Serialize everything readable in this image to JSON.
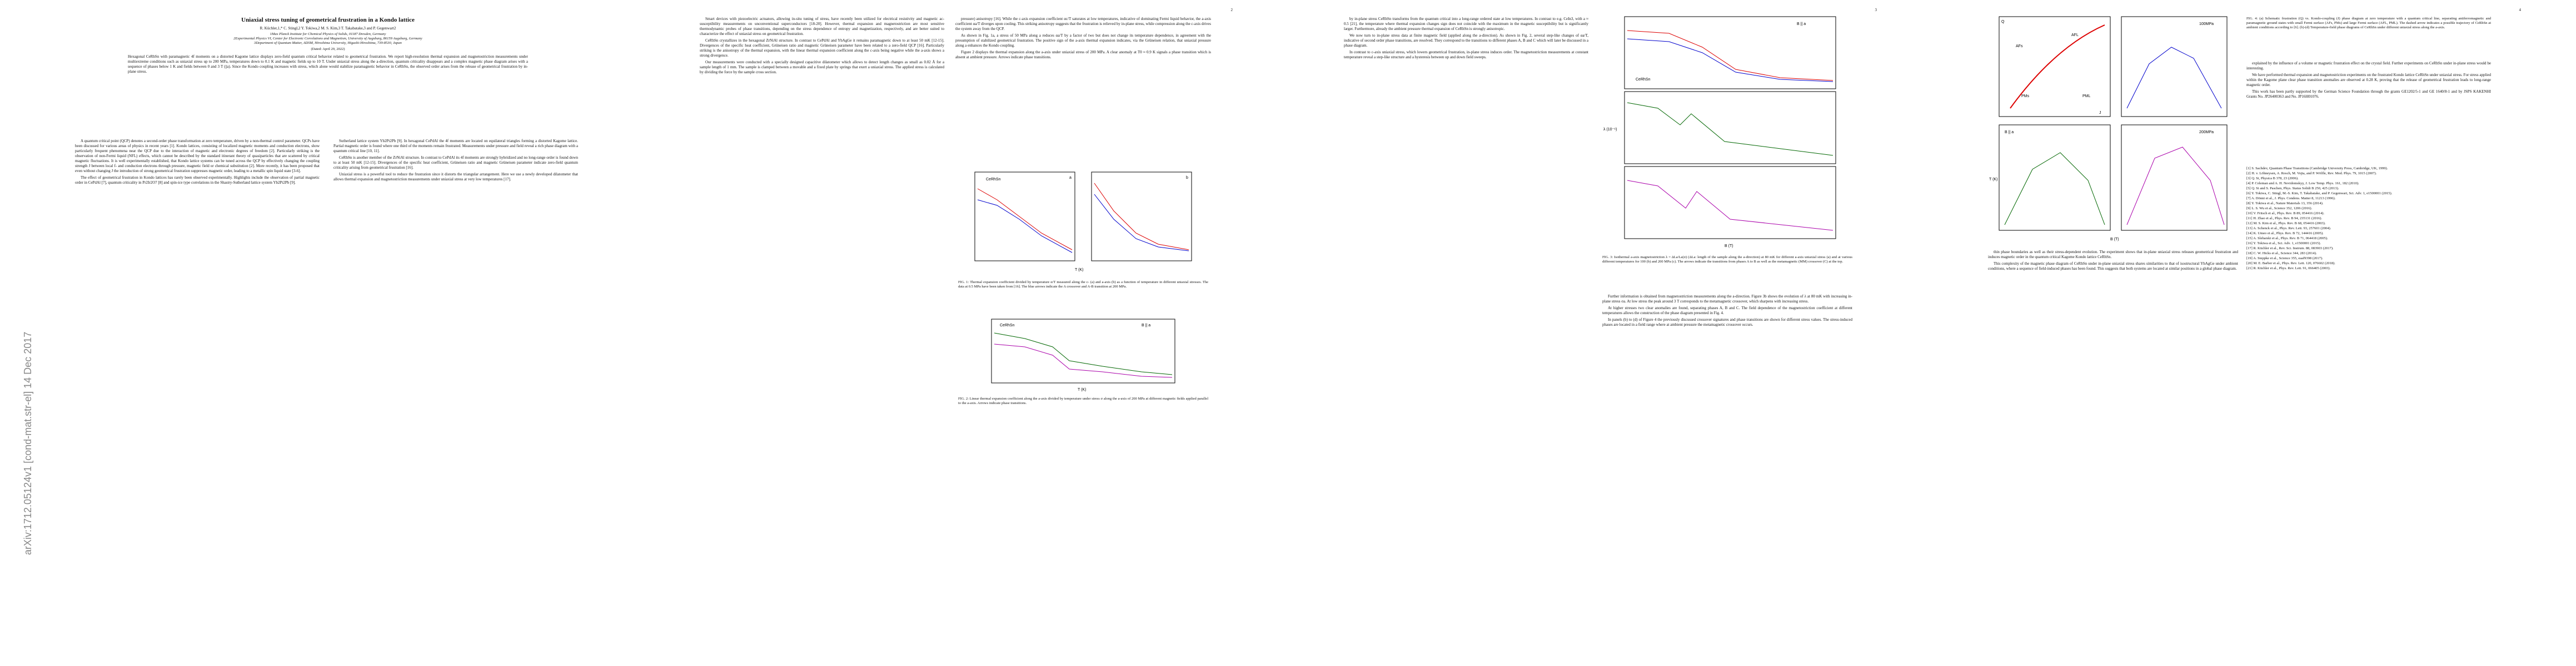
{
  "sidebar": "arXiv:1712.05124v1 [cond-mat.str-el] 14 Dec 2017",
  "page1": {
    "title": "Uniaxial stress tuning of geometrical frustration in a Kondo lattice",
    "authors": "R. Küchler,1,* C. Stingl,2 Y. Tokiwa,2 M. S. Kim,3 T. Takabatake,3 and P. Gegenwart2",
    "affiliations": [
      "1Max Planck Institute for Chemical Physics of Solids, 01187 Dresden, Germany",
      "2Experimental Physics VI, Center for Electronic Correlations and Magnetism, University of Augsburg, 86159 Augsburg, Germany",
      "3Department of Quantum Matter, ADSM, Hiroshima University, Higashi-Hiroshima, 739-8530, Japan"
    ],
    "dated": "(Dated: April 29, 2022)",
    "abstract": "Hexagonal CeRhSn with paramagnetic 4f moments on a distorted Kagome lattice displays zero-field quantum critical behavior related to geometrical frustration. We report high-resolution thermal expansion and magnetostriction measurements under multiextreme conditions such as uniaxial stress up to 200 MPa, temperatures down to 0.1 K and magnetic fields up to 10 T. Under uniaxial stress along the a-direction, quantum criticality disappears and a complex magnetic phase diagram arises with a sequence of phases below 1 K and fields between 0 and 3 T (||a). Since the Kondo coupling increases with stress, which alone would stabilize paramagnetic behavior in CeRhSn, the observed order arises from the release of geometrical frustration by in-plane stress.",
    "left": [
      "A quantum critical point (QCP) denotes a second-order phase transformation at zero temperature, driven by a non-thermal control parameter. QCPs have been discussed for various areas of physics in recent years [1]. Kondo lattices, consisting of localized magnetic moments and conduction electrons, show particularly frequent phenomena near the QCP due to the interaction of magnetic and electronic degrees of freedom [2]. Particularly striking is the observation of non-Fermi liquid (NFL) effects, which cannot be described by the standard itinerant theory of quasiparticles that are scattered by critical magnetic fluctuations. It is well experimentally established, that Kondo lattice systems can be tuned across the QCP by effectively changing the coupling strength J between local f- and conduction electrons through pressure, magnetic field or chemical substitution [2]. More recently, it has been proposed that even without changing J the introduction of strong geometrical frustration suppresses magnetic order, leading to a metallic spin liquid state [3-6].",
      "The effect of geometrical frustration in Kondo lattices has rarely been observed experimentally. Highlights include the observation of partial magnetic order in CePdAl [7], quantum criticality in Pr2Ir2O7 [8] and spin-ice type correlations in the Shastry-Sutherland lattice system Yb2Pt2Pb [9]."
    ],
    "right": [
      "Sutherland lattice system Yb2Pt2Pb [9]. In hexagonal CePdAl the 4f moments are located on equilateral triangles forming a distorted Kagome lattice. Partial magnetic order is found where one third of the moments remain frustrated. Measurements under pressure and field reveal a rich phase diagram with a quantum critical line [10, 11].",
      "CeRhSn is another member of the ZrNiAl structure. In contrast to CePdAl its 4f moments are strongly hybridized and no long-range order is found down to at least 50 mK [12-15]. Divergences of the specific heat coefficient, Grüneisen ratio and magnetic Grüneisen parameter indicate zero-field quantum criticality arising from geometrical frustration [16].",
      "Uniaxial stress is a powerful tool to reduce the frustration since it distorts the triangular arrangement. Here we use a newly developed dilatometer that allows thermal expansion and magnetostriction measurements under uniaxial stress at very low temperatures [17]."
    ]
  },
  "page2": {
    "number": "2",
    "left": [
      "Smart devices with piezoelectric actuators, allowing in-situ tuning of stress, have recently been utilized for electrical resistivity and magnetic ac-susceptibility measurements on unconventional superconductors [18-20]. However, thermal expansion and magnetostriction are most sensitive thermodynamic probes of phase transitions, depending on the stress dependence of entropy and magnetization, respectively, and are better suited to characterize the effect of uniaxial stress on geometrical frustration.",
      "CeRhSn crystallizes in the hexagonal ZrNiAl structure. In contrast to CePdAl and YbAgGe it remains paramagnetic down to at least 50 mK [12-15]. Divergences of the specific heat coefficient, Grüneisen ratio and magnetic Grüneisen parameter have been related to a zero-field QCP [16]. Particularly striking is the anisotropy of the thermal expansion, with the linear thermal expansion coefficient along the c-axis being negative while the a-axis shows a strong divergence.",
      "Our measurements were conducted with a specially designed capacitive dilatometer which allows to detect length changes as small as 0.02 Å for a sample length of 1 mm. The sample is clamped between a movable and a fixed plate by springs that exert a uniaxial stress. The applied stress is calculated by dividing the force by the sample cross section."
    ],
    "right": [
      "pressure) anisotropy [16]. While the c-axis expansion coefficient αc/T saturates at low temperatures, indicative of dominating Fermi liquid behavior, the a-axis coefficient αa/T diverges upon cooling. This striking anisotropy suggests that the frustration is relieved by in-plane stress, while compression along the c-axis drives the system away from the QCP.",
      "As shown in Fig. 1a, a stress of 50 MPa along a reduces αa/T by a factor of two but does not change its temperature dependence, in agreement with the presumption of stabilized geometrical frustration. The positive sign of the a-axis thermal expansion indicates, via the Grüneisen relation, that uniaxial pressure along a enhances the Kondo coupling.",
      "Figure 2 displays the thermal expansion along the a-axis under uniaxial stress of 200 MPa. A clear anomaly at T0 ≈ 0.9 K signals a phase transition which is absent at ambient pressure. Arrows indicate phase transitions."
    ],
    "fig1_caption": "FIG. 1: Thermal expansion coefficient divided by temperature α/T measured along the c- (a) and a-axis (b) as a function of temperature in different uniaxial stresses. The data at 0.5 MPa have been taken from [16]. The blue arrows indicate the A crossover and A-B transition at 200 MPa.",
    "fig2_caption": "FIG. 2: Linear thermal expansion coefficient along the a-axis divided by temperature under stress σ along the a-axis of 200 MPa at different magnetic fields applied parallel to the a-axis. Arrows indicate phase transitions.",
    "fig1_labels": [
      "CeRhSn",
      "a",
      "b",
      "T (K)"
    ],
    "fig2_labels": [
      "CeRhSn",
      "T (K)",
      "B || a"
    ]
  },
  "page3": {
    "number": "3",
    "left": [
      "by in-plane stress CeRhSn transforms from the quantum critical into a long-range ordered state at low temperatures. In contrast to e.g. CeIn3, with a ≈ 0.5 [21], the temperature where thermal expansion changes sign does not coincide with the maximum in the magnetic susceptibility but is significantly larger. Furthermore, already the ambient pressure thermal expansion of CeRhSn is strongly anisotropic.",
      "We now turn to in-plane stress data at finite magnetic field (applied along the a-direction). As shown in Fig. 2, several step-like changes of αa/T, indicative of second order phase transitions, are resolved. They correspond to the transitions to different phases A, B and C which will later be discussed in a phase diagram.",
      "In contrast to c-axis uniaxial stress, which lowers geometrical frustration, in-plane stress induces order. The magnetostriction measurements at constant temperature reveal a step-like structure and a hysteresis between up and down field sweeps."
    ],
    "right": [
      "Further information is obtained from magnetostriction measurements along the a-direction. Figure 3b shows the evolution of λ at 80 mK with increasing in-plane stress σa. At low stress the peak around 3 T corresponds to the metamagnetic crossover, which sharpens with increasing stress.",
      "At higher stresses two clear anomalies are found, separating phases A, B and C. The field dependence of the magnetostriction coefficient at different temperatures allows the construction of the phase diagram presented in Fig. 4.",
      "In panels (b) to (d) of Figure 4 the previously discussed crossover signatures and phase transitions are shown for different stress values. The stress-induced phases are located in a field range where at ambient pressure the metamagnetic crossover occurs."
    ],
    "fig3_caption": "FIG. 3: Isothermal a-axis magnetostriction λ = ΔLa/La(σ) (ΔLa: length of the sample along the a-direction) at 80 mK for different a-axis uniaxial stress (a) and at various different temperatures for 100 (b) and 200 MPa (c). The arrows indicate the transitions from phases A to B as well as the metamagnetic (MM) crossover (C) at the top.",
    "fig3_labels": [
      "CeRhSn",
      "B || a",
      "λ (10⁻⁶)",
      "B (T)"
    ]
  },
  "page4": {
    "number": "4",
    "fig4_caption": "FIG. 4: (a) Schematic frustration (Q) vs. Kondo-coupling (J) phase diagram at zero temperature with a quantum critical line, separating antiferromagnetic and paramagnetic ground states with small Fermi surface (AFs, PMs) and large Fermi surface (AFL, PML). The dashed arrow indicates a possible trajectory of CeRhSn at ambient conditions according to [6]. (b)-(d) Temperature-field phase diagrams of CeRhSn under different uniaxial stress along the a-axis.",
    "fig4_labels": [
      "J",
      "Q",
      "AFs",
      "PMs",
      "PML",
      "AFL",
      "100MPa",
      "200MPa",
      "B || a",
      "T (K)",
      "B (T)"
    ],
    "left": [
      "thin phase boundaries as well as their stress-dependent evolution. The experiment shows that in-plane uniaxial stress releases geometrical frustration and induces magnetic order in the quantum critical Kagome Kondo lattice CeRhSn.",
      "This complexity of the magnetic phase diagram of CeRhSn under in-plane uniaxial stress shares similarities to that of isostructural YbAgGe under ambient conditions, where a sequence of field-induced phases has been found. This suggests that both systems are located at similar positions in a global phase diagram."
    ],
    "right": [
      "explained by the influence of a volume or magnetic frustration effect on the crystal field. Further experiments on CeRhSn under in-plane stress would be interesting.",
      "We have performed thermal expansion and magnetostriction experiments on the frustrated Kondo lattice CeRhSn under uniaxial stress. For stress applied within the Kagome plane clear phase transition anomalies are observed at 0.28 K, proving that the release of geometrical frustration leads to long-range magnetic order.",
      "This work has been partly supported by the German Science Foundation through the grants GE1202/5-1 and GE 1640/8-1 and by JSPS KAKENHI Grants No. JP26400363 and No. JP16H01076."
    ],
    "references": [
      "[1] S. Sachdev, Quantum Phase Transitions (Cambridge University Press, Cambridge, UK, 1999).",
      "[2] H. v. Löhneysen, A. Rosch, M. Vojta, and P. Wölfle, Rev. Mod. Phys. 79, 1015 (2007).",
      "[3] Q. Si, Physica B 378, 23 (2006).",
      "[4] P. Coleman and A. H. Nevidomskyy, J. Low Temp. Phys. 161, 182 (2010).",
      "[5] Q. Si and S. Paschen, Phys. Status Solidi B 250, 425 (2013).",
      "[6] Y. Tokiwa, C. Stingl, M.-S. Kim, T. Takabatake, and P. Gegenwart, Sci. Adv. 1, e1500001 (2015).",
      "[7] A. Dönni et al., J. Phys. Condens. Matter 8, 11213 (1996).",
      "[8] Y. Tokiwa et al., Nature Materials 13, 356 (2014).",
      "[9] L. S. Wu et al., Science 352, 1206 (2016).",
      "[10] V. Fritsch et al., Phys. Rev. B 89, 054416 (2014).",
      "[11] H. Zhao et al., Phys. Rev. B 94, 235131 (2016).",
      "[12] M. S. Kim et al., Phys. Rev. B 68, 054416 (2003).",
      "[13] A. Schenck et al., Phys. Rev. Lett. 93, 257601 (2004).",
      "[14] K. Umeo et al., Phys. Rev. B 72, 144416 (2005).",
      "[15] A. Slebarski et al., Phys. Rev. B 71, 064418 (2005).",
      "[16] Y. Tokiwa et al., Sci. Adv. 1, e1500001 (2015).",
      "[17] R. Küchler et al., Rev. Sci. Instrum. 88, 083903 (2017).",
      "[18] C. W. Hicks et al., Science 344, 283 (2014).",
      "[19] A. Steppke et al., Science 355, eaaf9398 (2017).",
      "[20] M. E. Barber et al., Phys. Rev. Lett. 120, 076602 (2018).",
      "[21] R. Küchler et al., Phys. Rev. Lett. 91, 066405 (2003)."
    ]
  }
}
